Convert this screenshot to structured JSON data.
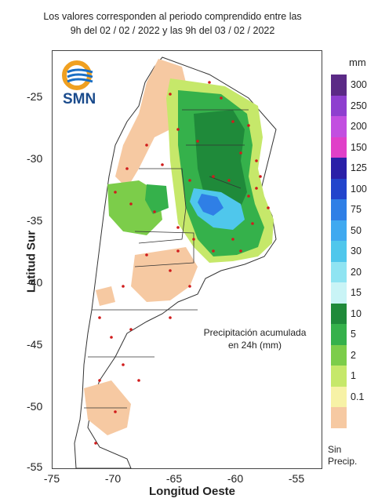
{
  "title": {
    "line1": "Los valores corresponden al periodo comprendido entre las",
    "line2": "9h del 02 / 02 / 2022  y las 9h del 03 / 02 / 2022"
  },
  "logo_text": "SMN",
  "axes": {
    "xlabel": "Longitud Oeste",
    "ylabel": "Latitud Sur",
    "xticks": [
      "-75",
      "-70",
      "-65",
      "-60",
      "-55"
    ],
    "yticks": [
      "-25",
      "-30",
      "-35",
      "-40",
      "-45",
      "-50",
      "-55"
    ]
  },
  "legend": {
    "unit": "mm",
    "items": [
      {
        "label": "300",
        "color": "#5b2a86"
      },
      {
        "label": "250",
        "color": "#8e3fcf"
      },
      {
        "label": "200",
        "color": "#c24fe0"
      },
      {
        "label": "150",
        "color": "#e040c8"
      },
      {
        "label": "125",
        "color": "#2a1fa8"
      },
      {
        "label": "100",
        "color": "#2244cc"
      },
      {
        "label": "75",
        "color": "#2f7fe6"
      },
      {
        "label": "50",
        "color": "#3fa9f0"
      },
      {
        "label": "30",
        "color": "#4fc7ec"
      },
      {
        "label": "20",
        "color": "#8fe4f2"
      },
      {
        "label": "15",
        "color": "#c9f4f6"
      },
      {
        "label": "10",
        "color": "#1f8a3a"
      },
      {
        "label": "5",
        "color": "#35b14b"
      },
      {
        "label": "2",
        "color": "#7ccd4a"
      },
      {
        "label": "1",
        "color": "#c6e86a"
      },
      {
        "label": "0.1",
        "color": "#f7f2a6"
      },
      {
        "label": "",
        "color": "#f6c9a2"
      }
    ],
    "no_precip_line1": "Sin",
    "no_precip_line2": "Precip."
  },
  "note": {
    "line1": "Precipitación acumulada",
    "line2": "en 24h (mm)"
  }
}
